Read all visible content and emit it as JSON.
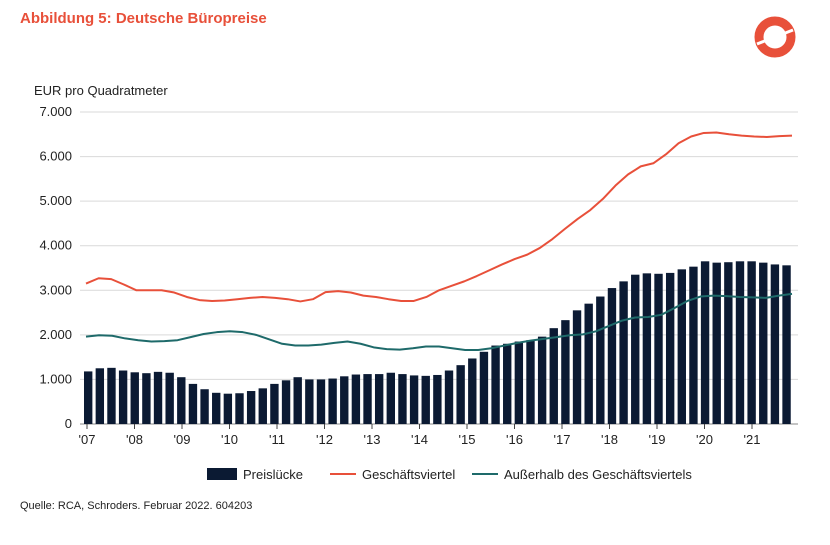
{
  "header": {
    "title": "Abbildung 5: Deutsche Büropreise"
  },
  "footer": {
    "source": "Quelle: RCA, Schroders. Februar 2022. 604203"
  },
  "colors": {
    "title": "#e8503a",
    "bar": "#0b1a33",
    "red": "#e8503a",
    "teal": "#1e6a6a",
    "grid": "#d9d9d9"
  },
  "chart_data": {
    "type": "bar",
    "ylabel": "EUR pro Quadratmeter",
    "ylim": [
      0,
      7000
    ],
    "yticks": [
      "0",
      "1.000",
      "2.000",
      "3.000",
      "4.000",
      "5.000",
      "6.000",
      "7.000"
    ],
    "ytick_values": [
      0,
      1000,
      2000,
      3000,
      4000,
      5000,
      6000,
      7000
    ],
    "xticks": [
      "'07",
      "'08",
      "'09",
      "'10",
      "'11",
      "'12",
      "'13",
      "'14",
      "'15",
      "'16",
      "'17",
      "'18",
      "'19",
      "'20",
      "'21"
    ],
    "grid": true,
    "legend_position": "bottom",
    "series": [
      {
        "name": "Preislücke",
        "kind": "bar",
        "values": [
          1180,
          1250,
          1260,
          1200,
          1160,
          1140,
          1170,
          1150,
          1050,
          900,
          780,
          700,
          680,
          690,
          740,
          800,
          900,
          980,
          1050,
          1000,
          1000,
          1020,
          1070,
          1110,
          1120,
          1120,
          1150,
          1120,
          1090,
          1080,
          1100,
          1200,
          1320,
          1470,
          1620,
          1760,
          1800,
          1850,
          1880,
          1960,
          2150,
          2330,
          2550,
          2700,
          2860,
          3050,
          3200,
          3350,
          3380,
          3370,
          3390,
          3470,
          3530,
          3650,
          3620,
          3630,
          3650,
          3650,
          3620,
          3580,
          3560
        ]
      },
      {
        "name": "Geschäftsviertel",
        "kind": "line",
        "values": [
          3150,
          3270,
          3250,
          3130,
          3000,
          3000,
          3000,
          2950,
          2850,
          2780,
          2760,
          2770,
          2800,
          2830,
          2850,
          2830,
          2800,
          2750,
          2800,
          2960,
          2980,
          2950,
          2880,
          2850,
          2800,
          2760,
          2760,
          2850,
          3000,
          3100,
          3200,
          3320,
          3450,
          3580,
          3700,
          3800,
          3950,
          4150,
          4380,
          4600,
          4800,
          5050,
          5350,
          5600,
          5780,
          5850,
          6050,
          6300,
          6450,
          6530,
          6540,
          6500,
          6470,
          6450,
          6440,
          6460,
          6470
        ]
      },
      {
        "name": "Außerhalb des Geschäftsviertels",
        "kind": "line",
        "values": [
          1960,
          1990,
          1980,
          1920,
          1880,
          1850,
          1860,
          1880,
          1950,
          2020,
          2060,
          2080,
          2060,
          2000,
          1900,
          1800,
          1760,
          1760,
          1780,
          1820,
          1850,
          1800,
          1720,
          1680,
          1670,
          1700,
          1740,
          1740,
          1700,
          1660,
          1660,
          1700,
          1760,
          1820,
          1870,
          1910,
          1950,
          1990,
          2010,
          2080,
          2200,
          2320,
          2390,
          2400,
          2450,
          2600,
          2760,
          2860,
          2880,
          2870,
          2850,
          2840,
          2830,
          2880,
          2920
        ]
      }
    ]
  }
}
